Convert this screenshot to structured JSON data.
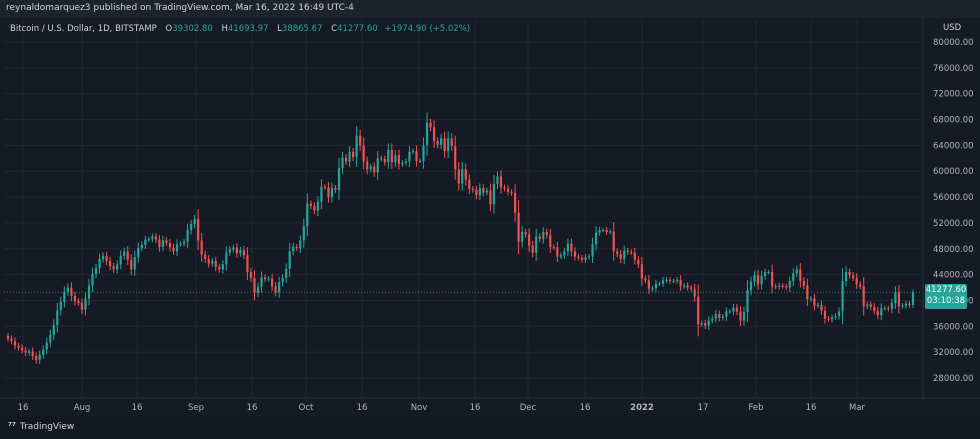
{
  "header": {
    "published_line": "reynaldomarquez3 published on TradingView.com, Mar 16, 2022 16:49 UTC-4"
  },
  "legend": {
    "symbol": "Bitcoin / U.S. Dollar, 1D, BITSTAMP",
    "o_label": "O",
    "o_value": "39302.80",
    "h_label": "H",
    "h_value": "41693.97",
    "l_label": "L",
    "l_value": "38865.67",
    "c_label": "C",
    "c_value": "41277.60",
    "change": "+1974.90 (+5.02%)"
  },
  "currency": "USD",
  "price_tag": {
    "price": "41277.60",
    "countdown": "03:10:38"
  },
  "footer": {
    "brand": "TradingView"
  },
  "colors": {
    "up": "#26a69a",
    "down": "#ef5350",
    "background": "#161a25",
    "grid": "#232632"
  },
  "chart_data": {
    "type": "candlestick",
    "ylim": [
      24000,
      82000
    ],
    "y_ticks": [
      "80000.00",
      "76000.00",
      "72000.00",
      "68000.00",
      "64000.00",
      "60000.00",
      "56000.00",
      "52000.00",
      "48000.00",
      "44000.00",
      "40000.00",
      "36000.00",
      "32000.00",
      "28000.00"
    ],
    "x_ticks": [
      "16",
      "Aug",
      "16",
      "Sep",
      "16",
      "Oct",
      "16",
      "Nov",
      "16",
      "Dec",
      "16",
      "2022",
      "17",
      "Feb",
      "16",
      "Mar"
    ],
    "last_price": 41277.6,
    "closes": [
      34100,
      33700,
      33000,
      32700,
      32300,
      31900,
      32100,
      31400,
      30800,
      31600,
      32400,
      33500,
      34700,
      36200,
      38500,
      39800,
      41300,
      42000,
      40700,
      39900,
      39600,
      38600,
      40300,
      42300,
      44100,
      45000,
      46400,
      46900,
      46100,
      45300,
      44800,
      45600,
      46900,
      47600,
      46300,
      44800,
      46700,
      48100,
      48600,
      49400,
      49500,
      49900,
      49400,
      48300,
      49300,
      48900,
      48200,
      47600,
      48700,
      48800,
      49100,
      50900,
      51800,
      52600,
      49300,
      47100,
      46400,
      45700,
      46100,
      45200,
      44800,
      45600,
      47400,
      47900,
      48200,
      47300,
      47800,
      47000,
      44400,
      43500,
      41200,
      42100,
      43600,
      43300,
      43400,
      42200,
      41300,
      42800,
      43500,
      44900,
      47600,
      48300,
      48100,
      49300,
      51500,
      55000,
      54600,
      53900,
      55300,
      57600,
      57500,
      56000,
      57400,
      57100,
      60500,
      62100,
      61500,
      63000,
      62200,
      65500,
      64000,
      61500,
      60300,
      60700,
      59800,
      62000,
      61900,
      61400,
      63300,
      61400,
      62500,
      61100,
      61300,
      61500,
      63000,
      63100,
      61600,
      61600,
      64000,
      67500,
      66800,
      64700,
      64100,
      65100,
      63100,
      65100,
      63900,
      60300,
      58100,
      60300,
      58700,
      57300,
      57100,
      56300,
      57400,
      56700,
      57000,
      54900,
      58000,
      59200,
      57500,
      57300,
      56800,
      56600,
      53600,
      49100,
      50600,
      50200,
      48500,
      47400,
      49900,
      49500,
      50600,
      50100,
      48300,
      48200,
      46800,
      47000,
      47600,
      48800,
      47600,
      46800,
      46600,
      46300,
      46700,
      46800,
      48700,
      50500,
      50900,
      50900,
      50600,
      50700,
      47600,
      47200,
      46400,
      47700,
      47500,
      47400,
      46300,
      45600,
      43400,
      43100,
      41800,
      41900,
      42600,
      42600,
      43100,
      43200,
      43000,
      43000,
      43200,
      42200,
      42300,
      42000,
      41800,
      40600,
      36300,
      36500,
      36100,
      36900,
      37200,
      37900,
      37300,
      37500,
      38300,
      38300,
      38900,
      38300,
      36900,
      38200,
      41600,
      42900,
      43900,
      42500,
      43800,
      44400,
      44400,
      42200,
      42100,
      42300,
      42200,
      42000,
      43000,
      44200,
      44800,
      43000,
      42300,
      40200,
      40300,
      39200,
      39300,
      38400,
      37200,
      37100,
      37400,
      37600,
      38300,
      43000,
      44400,
      43900,
      43500,
      42500,
      42200,
      39100,
      39400,
      39000,
      38400,
      37700,
      38800,
      38800,
      38700,
      39600,
      41300,
      39100,
      39200,
      39500,
      39300,
      41277.6
    ]
  }
}
